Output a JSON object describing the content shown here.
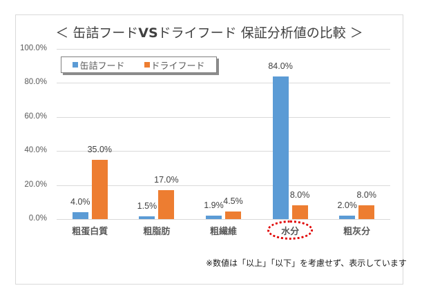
{
  "chart": {
    "title_left": "＜ 缶詰フード",
    "title_vs": "VS",
    "title_right": "ドライフード 保証分析値の比較 ＞",
    "note": "※数値は「以上」「以下」を考慮せず、表示しています",
    "y_ticks": [
      "100.0%",
      "80.0%",
      "60.0%",
      "40.0%",
      "20.0%",
      "0.0%"
    ],
    "legend": [
      {
        "label": "缶詰フード",
        "color": "#5b9bd5"
      },
      {
        "label": "ドライフード",
        "color": "#ed7d31"
      }
    ],
    "categories": [
      "粗蛋白質",
      "粗脂肪",
      "粗繊維",
      "水分",
      "粗灰分"
    ],
    "canned_labels": [
      "4.0%",
      "1.5%",
      "1.9%",
      "84.0%",
      "2.0%"
    ],
    "dry_labels": [
      "35.0%",
      "17.0%",
      "4.5%",
      "8.0%",
      "8.0%"
    ],
    "highlighted_category": "水分",
    "highlight_color": "#e00000"
  },
  "chart_data": {
    "type": "bar",
    "title": "＜ 缶詰フードVSドライフード 保証分析値の比較 ＞",
    "categories": [
      "粗蛋白質",
      "粗脂肪",
      "粗繊維",
      "水分",
      "粗灰分"
    ],
    "series": [
      {
        "name": "缶詰フード",
        "color": "#5b9bd5",
        "values": [
          4.0,
          1.5,
          1.9,
          84.0,
          2.0
        ]
      },
      {
        "name": "ドライフード",
        "color": "#ed7d31",
        "values": [
          35.0,
          17.0,
          4.5,
          8.0,
          8.0
        ]
      }
    ],
    "xlabel": "",
    "ylabel": "",
    "ylim": [
      0,
      100
    ],
    "y_ticks": [
      0,
      20,
      40,
      60,
      80,
      100
    ],
    "y_tick_format": "0.0%",
    "grid": true,
    "legend_position": "top-left inside",
    "data_labels": true,
    "annotations": [
      "水分 circled with red dotted ellipse",
      "※数値は「以上」「以下」を考慮せず、表示しています"
    ]
  }
}
